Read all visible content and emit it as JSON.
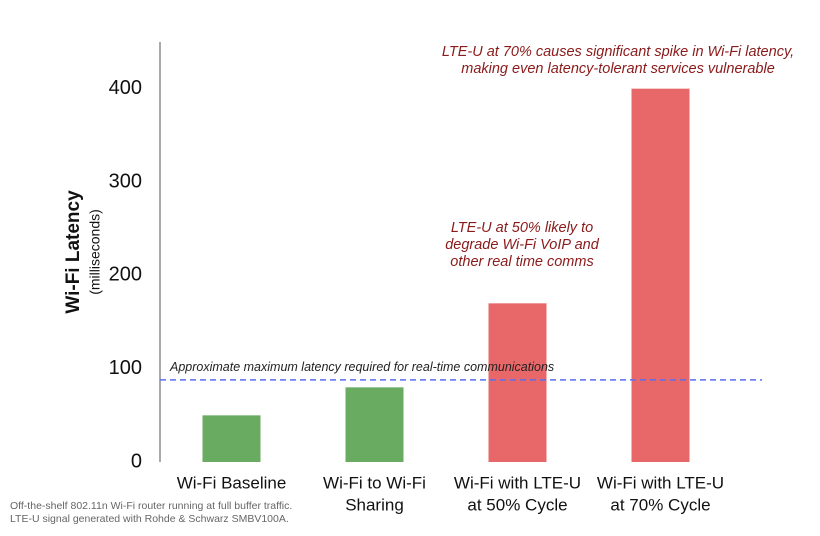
{
  "chart_data": {
    "type": "bar",
    "y_title": "Wi-Fi Latency",
    "y_subtitle": "(milliseconds)",
    "categories": [
      [
        "Wi-Fi Baseline"
      ],
      [
        "Wi-Fi to Wi-Fi",
        "Sharing"
      ],
      [
        "Wi-Fi with LTE-U",
        "at 50% Cycle"
      ],
      [
        "Wi-Fi with LTE-U",
        "at 70% Cycle"
      ]
    ],
    "values": [
      50,
      80,
      170,
      400
    ],
    "colors": [
      "#6aab62",
      "#6aab62",
      "#e8686a",
      "#e8686a"
    ],
    "ylim": [
      0,
      450
    ],
    "yticks": [
      0,
      100,
      200,
      300,
      400
    ],
    "grid": false,
    "reference_line": {
      "value": 88,
      "label": "Approximate maximum latency required for real-time communications",
      "color": "#5b6ff0"
    },
    "annotations": [
      [
        "LTE-U at 70% causes significant spike in Wi-Fi latency,",
        "making even latency-tolerant services vulnerable"
      ],
      [
        "LTE-U at 50% likely to",
        "degrade Wi-Fi VoIP and",
        "other real time comms"
      ]
    ],
    "footnote": [
      "Off-the-shelf 802.11n Wi-Fi router running at full buffer traffic.",
      "LTE-U signal generated with Rohde & Schwarz SMBV100A."
    ]
  }
}
